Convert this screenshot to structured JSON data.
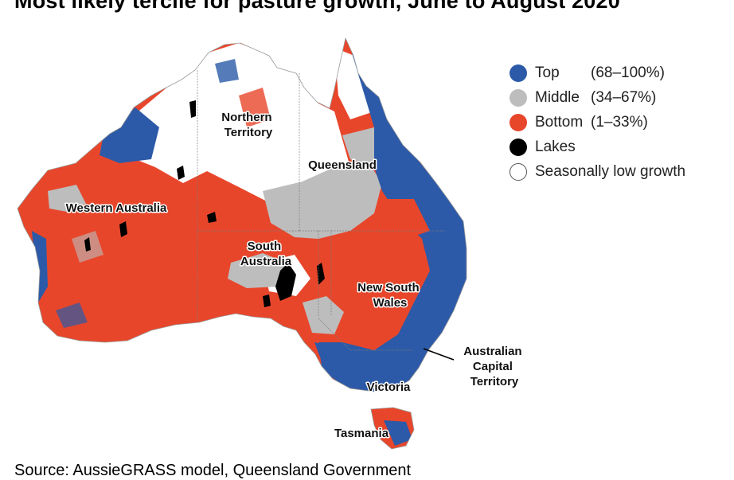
{
  "title": "Most likely tercile for pasture growth, June to August 2020",
  "source": "Source: AussieGRASS model, Queensland Government",
  "legend": [
    {
      "label": "Top",
      "range": "(68–100%)",
      "color": "#2c5aa8"
    },
    {
      "label": "Middle",
      "range": "(34–67%)",
      "color": "#bdbdbd"
    },
    {
      "label": "Bottom",
      "range": "(1–33%)",
      "color": "#e8462b"
    },
    {
      "label": "Lakes",
      "range": "",
      "color": "#000000"
    },
    {
      "label": "Seasonally low growth",
      "range": "",
      "color": "#ffffff"
    }
  ],
  "regions": {
    "northern_territory": [
      "Northern",
      "Territory"
    ],
    "queensland": "Queensland",
    "western_australia": "Western Australia",
    "south_australia": [
      "South",
      "Australia"
    ],
    "new_south_wales": [
      "New South",
      "Wales"
    ],
    "act": [
      "Australian",
      "Capital",
      "Territory"
    ],
    "victoria": "Victoria",
    "tasmania": "Tasmania"
  }
}
